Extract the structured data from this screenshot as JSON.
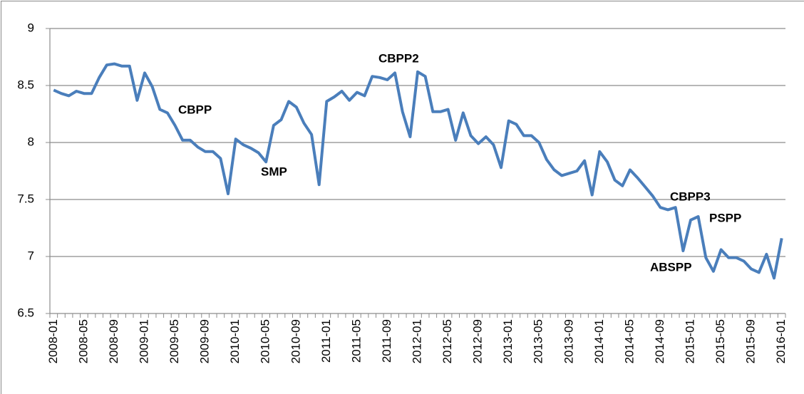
{
  "chart_data": {
    "type": "line",
    "categories": [
      "2008-01",
      null,
      null,
      null,
      "2008-05",
      null,
      null,
      null,
      "2008-09",
      null,
      null,
      null,
      "2009-01",
      null,
      null,
      null,
      "2009-05",
      null,
      null,
      null,
      "2009-09",
      null,
      null,
      null,
      "2010-01",
      null,
      null,
      null,
      "2010-05",
      null,
      null,
      null,
      "2010-09",
      null,
      null,
      null,
      "2011-01",
      null,
      null,
      null,
      "2011-05",
      null,
      null,
      null,
      "2011-09",
      null,
      null,
      null,
      "2012-01",
      null,
      null,
      null,
      "2012-05",
      null,
      null,
      null,
      "2012-09",
      null,
      null,
      null,
      "2013-01",
      null,
      null,
      null,
      "2013-05",
      null,
      null,
      null,
      "2013-09",
      null,
      null,
      null,
      "2014-01",
      null,
      null,
      null,
      "2014-05",
      null,
      null,
      null,
      "2014-09",
      null,
      null,
      null,
      "2015-01",
      null,
      null,
      null,
      "2015-05",
      null,
      null,
      null,
      "2015-09",
      null,
      null,
      null,
      "2016-01"
    ],
    "values": [
      8.46,
      8.43,
      8.41,
      8.45,
      8.43,
      8.43,
      8.57,
      8.68,
      8.69,
      8.67,
      8.67,
      8.37,
      8.61,
      8.49,
      8.29,
      8.26,
      8.15,
      8.02,
      8.02,
      7.96,
      7.92,
      7.92,
      7.86,
      7.55,
      8.03,
      7.98,
      7.95,
      7.91,
      7.83,
      8.15,
      8.2,
      8.36,
      8.31,
      8.17,
      8.07,
      7.63,
      8.36,
      8.4,
      8.45,
      8.37,
      8.44,
      8.41,
      8.58,
      8.57,
      8.55,
      8.61,
      8.27,
      8.05,
      8.62,
      8.58,
      8.27,
      8.27,
      8.29,
      8.02,
      8.26,
      8.06,
      7.99,
      8.05,
      7.98,
      7.78,
      8.19,
      8.16,
      8.06,
      8.06,
      8.0,
      7.85,
      7.76,
      7.71,
      7.73,
      7.75,
      7.84,
      7.54,
      7.92,
      7.83,
      7.67,
      7.62,
      7.76,
      7.69,
      7.61,
      7.53,
      7.43,
      7.41,
      7.43,
      7.05,
      7.32,
      7.35,
      6.99,
      6.87,
      7.06,
      6.99,
      6.99,
      6.96,
      6.89,
      6.86,
      7.02,
      6.81,
      7.16
    ],
    "color": "#4a7ebb",
    "ylim": [
      6.5,
      9
    ],
    "yticks": [
      6.5,
      7,
      7.5,
      8,
      8.5,
      9
    ],
    "grid": true,
    "annotations": [
      "CBPP",
      "SMP",
      "CBPP2",
      "CBPP3",
      "PSPP",
      "ABSPP"
    ]
  }
}
